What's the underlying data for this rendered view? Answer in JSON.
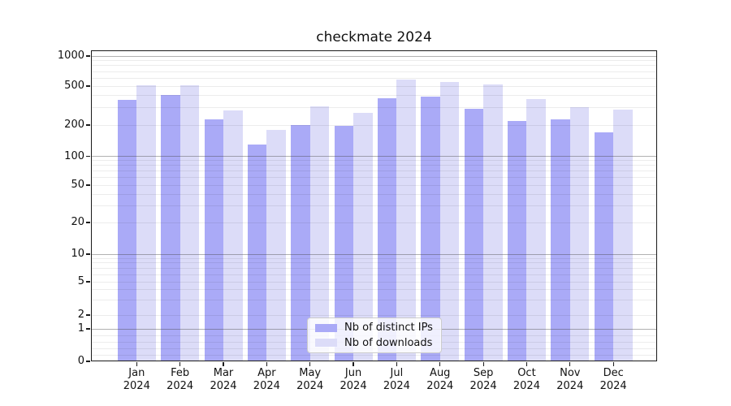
{
  "chart_data": {
    "type": "bar",
    "title": "checkmate 2024",
    "categories": [
      "Jan",
      "Feb",
      "Mar",
      "Apr",
      "May",
      "Jun",
      "Jul",
      "Aug",
      "Sep",
      "Oct",
      "Nov",
      "Dec"
    ],
    "category_year": "2024",
    "series": [
      {
        "name": "Nb of distinct IPs",
        "color": "#aaaaf7",
        "values": [
          360,
          405,
          230,
          130,
          200,
          195,
          375,
          390,
          295,
          220,
          230,
          170
        ]
      },
      {
        "name": "Nb of downloads",
        "color": "#dcdcf8",
        "values": [
          505,
          510,
          280,
          180,
          310,
          265,
          585,
          550,
          520,
          370,
          305,
          290
        ]
      }
    ],
    "xlabel": "",
    "ylabel": "",
    "yscale": "symlog",
    "ylim": [
      0,
      1000
    ],
    "ytick_values": [
      1000,
      500,
      200,
      100,
      50,
      20,
      10,
      5,
      2,
      1,
      0
    ],
    "ytick_labels": [
      "1000",
      "500",
      "200",
      "100",
      "50",
      "20",
      "10",
      "5",
      "2",
      "1",
      "0"
    ],
    "grid": "both",
    "legend_position": "lower center"
  }
}
